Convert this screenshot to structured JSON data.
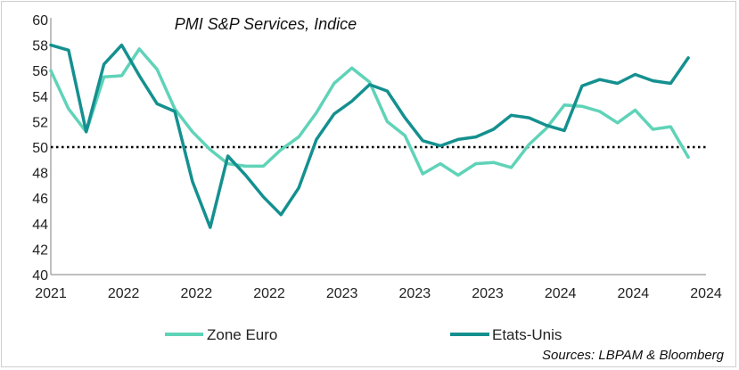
{
  "chart_data": {
    "type": "line",
    "title": "PMI S&P Services, Indice",
    "source": "Sources: LBPAM & Bloomberg",
    "ylim": [
      40,
      60
    ],
    "yticks": [
      "40",
      "42",
      "44",
      "46",
      "48",
      "50",
      "52",
      "54",
      "56",
      "58",
      "60"
    ],
    "xlim": [
      0,
      37
    ],
    "xticks": [
      "2021",
      "2022",
      "2022",
      "2022",
      "2023",
      "2023",
      "2023",
      "2024",
      "2024",
      "2024"
    ],
    "reference_line": {
      "value": 50,
      "style": "dotted"
    },
    "legend_position": "bottom",
    "series": [
      {
        "name": "Zone Euro",
        "color": "#5fd3b8",
        "values": [
          56.0,
          53.0,
          51.2,
          55.5,
          55.6,
          57.7,
          56.1,
          53.0,
          51.2,
          49.8,
          48.7,
          48.5,
          48.5,
          49.8,
          50.8,
          52.7,
          55.0,
          56.2,
          55.1,
          52.0,
          50.9,
          47.9,
          48.7,
          47.8,
          48.7,
          48.8,
          48.4,
          50.2,
          51.5,
          53.3,
          53.2,
          52.8,
          51.9,
          52.9,
          51.4,
          51.6,
          49.2
        ]
      },
      {
        "name": "Etats-Unis",
        "color": "#14908f",
        "values": [
          58.0,
          57.6,
          51.2,
          56.5,
          58.0,
          55.6,
          53.4,
          52.8,
          47.3,
          43.7,
          49.3,
          47.8,
          46.1,
          44.7,
          46.8,
          50.6,
          52.6,
          53.6,
          54.9,
          54.4,
          52.3,
          50.5,
          50.1,
          50.6,
          50.8,
          51.4,
          52.5,
          52.3,
          51.7,
          51.3,
          54.8,
          55.3,
          55.0,
          55.7,
          55.2,
          55.0,
          57.0
        ]
      }
    ]
  }
}
